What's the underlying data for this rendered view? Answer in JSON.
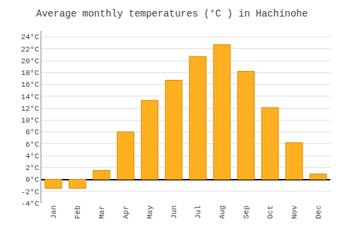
{
  "chart_data": {
    "type": "bar",
    "title": "Average monthly temperatures (°C ) in Hachinohe",
    "categories": [
      "Jan",
      "Feb",
      "Mar",
      "Apr",
      "May",
      "Jun",
      "Jul",
      "Aug",
      "Sep",
      "Oct",
      "Nov",
      "Dec"
    ],
    "values": [
      -1.5,
      -1.5,
      1.5,
      8.0,
      13.3,
      16.7,
      20.7,
      22.7,
      18.2,
      12.1,
      6.2,
      0.9
    ],
    "color": "#FFB020",
    "ylim": [
      -4,
      25
    ],
    "yticks": [
      {
        "value": -4,
        "label": "-4°C"
      },
      {
        "value": -2,
        "label": "-2°C"
      },
      {
        "value": 0,
        "label": "0°C"
      },
      {
        "value": 2,
        "label": "2°C"
      },
      {
        "value": 4,
        "label": "4°C"
      },
      {
        "value": 6,
        "label": "6°C"
      },
      {
        "value": 8,
        "label": "8°C"
      },
      {
        "value": 10,
        "label": "10°C"
      },
      {
        "value": 12,
        "label": "12°C"
      },
      {
        "value": 14,
        "label": "14°C"
      },
      {
        "value": 16,
        "label": "16°C"
      },
      {
        "value": 18,
        "label": "18°C"
      },
      {
        "value": 20,
        "label": "20°C"
      },
      {
        "value": 22,
        "label": "22°C"
      },
      {
        "value": 24,
        "label": "24°C"
      }
    ],
    "grid": true
  }
}
